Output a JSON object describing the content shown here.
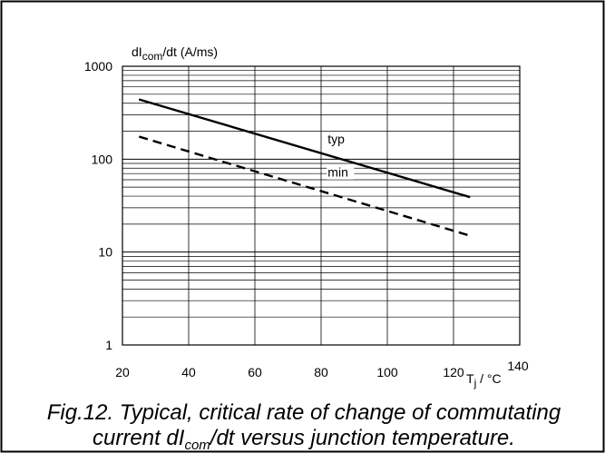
{
  "chart_data": {
    "type": "line",
    "ylabel": {
      "main": "dI",
      "sub": "com",
      "rest": "/dt (A/ms)"
    },
    "xlabel": {
      "main": "T",
      "sub": "j",
      "rest": " / °C"
    },
    "xlim": [
      20,
      140
    ],
    "ylim": [
      1,
      1000
    ],
    "yscale": "log",
    "grid": true,
    "x_ticks": [
      "20",
      "40",
      "60",
      "80",
      "100",
      "120",
      "140"
    ],
    "y_ticks": [
      "1",
      "10",
      "100",
      "1000"
    ],
    "series": [
      {
        "name": "typ",
        "style": "solid",
        "x": [
          25,
          125
        ],
        "y": [
          440,
          39
        ]
      },
      {
        "name": "min",
        "style": "dashed",
        "x": [
          25,
          125
        ],
        "y": [
          175,
          15
        ]
      }
    ]
  },
  "caption": {
    "line1": "Fig.12.  Typical, critical rate of change of commutating",
    "line2_prefix": "current dI",
    "line2_sub": "com",
    "line2_suffix": "/dt versus junction temperature."
  }
}
